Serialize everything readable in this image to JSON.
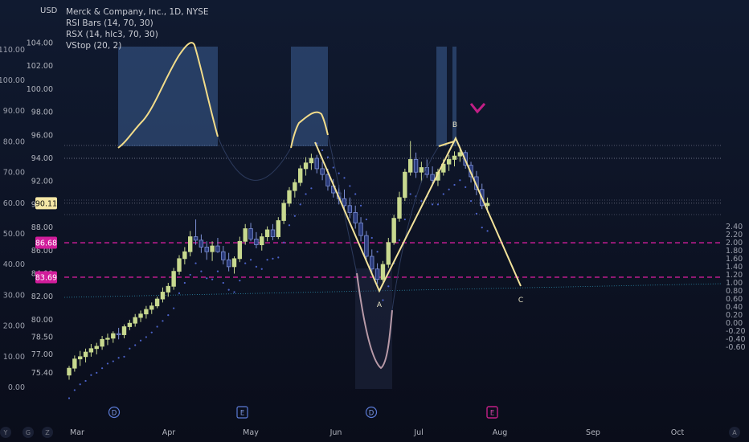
{
  "chart_data": {
    "type": "candlestick",
    "symbol_title": "Merck & Company, Inc., 1D, NYSE",
    "indicators": [
      "RSI Bars (14, 70, 30)",
      "RSX (14, hlc3, 70, 30)",
      "VStop (20, 2)"
    ],
    "currency": "USD",
    "price_axis_labels": [
      "104.00",
      "102.00",
      "100.00",
      "98.00",
      "96.00",
      "94.00",
      "92.00",
      "90.00",
      "88.00",
      "86.00",
      "84.00",
      "82.00",
      "80.00",
      "78.50",
      "77.00",
      "75.40"
    ],
    "osc_axis_left_labels": [
      "110.00",
      "100.00",
      "90.00",
      "80.00",
      "70.00",
      "60.00",
      "50.00",
      "40.00",
      "30.00",
      "20.00",
      "10.00",
      "0.00"
    ],
    "osc_axis_right_labels": [
      "2.40",
      "2.20",
      "2.00",
      "1.80",
      "1.60",
      "1.40",
      "1.20",
      "1.00",
      "0.80",
      "0.60",
      "0.40",
      "0.20",
      "0.00",
      "-0.20",
      "-0.40",
      "-0.60"
    ],
    "x_labels": [
      "Mar",
      "Apr",
      "May",
      "Jun",
      "Jul",
      "Aug",
      "Sep",
      "Oct"
    ],
    "price_tags": [
      {
        "label": "90.11",
        "price": 90.11,
        "color": "#f5e7a6",
        "text_color": "#111111"
      },
      {
        "label": "86.68",
        "price": 86.68,
        "color": "#d11d9b",
        "text_color": "#ffffff"
      },
      {
        "label": "83.69",
        "price": 83.69,
        "color": "#d11d9b",
        "text_color": "#ffffff"
      }
    ],
    "pattern_points": [
      {
        "label": "A",
        "date": "Jun 05",
        "price": 83.2
      },
      {
        "label": "B",
        "date": "Jul 12",
        "price": 94.6
      },
      {
        "label": "C",
        "date": "Aug 05",
        "price": 83.7
      }
    ],
    "candles": [
      [
        75.2,
        76.0,
        74.8,
        75.8
      ],
      [
        75.8,
        76.9,
        75.5,
        76.6
      ],
      [
        76.6,
        77.3,
        76.0,
        76.8
      ],
      [
        76.8,
        77.5,
        76.3,
        77.2
      ],
      [
        77.2,
        77.9,
        76.8,
        77.5
      ],
      [
        77.5,
        78.0,
        77.0,
        77.7
      ],
      [
        77.7,
        78.6,
        77.4,
        78.3
      ],
      [
        78.3,
        78.8,
        77.8,
        78.4
      ],
      [
        78.4,
        79.0,
        78.0,
        78.8
      ],
      [
        78.8,
        79.3,
        78.3,
        78.7
      ],
      [
        78.7,
        79.6,
        78.4,
        79.4
      ],
      [
        79.4,
        80.0,
        79.1,
        79.7
      ],
      [
        79.7,
        80.5,
        79.4,
        80.2
      ],
      [
        80.2,
        80.8,
        79.8,
        80.5
      ],
      [
        80.5,
        81.2,
        80.1,
        80.9
      ],
      [
        80.9,
        81.5,
        80.5,
        81.2
      ],
      [
        81.2,
        82.0,
        81.0,
        81.8
      ],
      [
        81.8,
        82.8,
        81.5,
        82.4
      ],
      [
        82.4,
        83.2,
        82.0,
        82.9
      ],
      [
        82.9,
        84.5,
        82.6,
        84.2
      ],
      [
        84.2,
        85.6,
        83.9,
        85.3
      ],
      [
        85.3,
        86.3,
        84.8,
        85.9
      ],
      [
        85.9,
        87.7,
        85.5,
        87.2
      ],
      [
        87.2,
        88.7,
        86.5,
        86.9
      ],
      [
        86.9,
        87.4,
        85.8,
        86.3
      ],
      [
        86.3,
        86.8,
        85.2,
        85.9
      ],
      [
        85.9,
        86.8,
        85.1,
        86.4
      ],
      [
        86.4,
        87.1,
        85.8,
        85.9
      ],
      [
        85.9,
        86.4,
        84.8,
        85.2
      ],
      [
        85.2,
        85.8,
        84.2,
        84.6
      ],
      [
        84.6,
        85.5,
        84.0,
        85.3
      ],
      [
        85.3,
        87.2,
        85.0,
        86.8
      ],
      [
        86.8,
        88.3,
        86.5,
        87.9
      ],
      [
        87.9,
        88.4,
        86.8,
        87.0
      ],
      [
        87.0,
        87.6,
        86.2,
        86.5
      ],
      [
        86.5,
        87.5,
        86.0,
        87.2
      ],
      [
        87.2,
        88.1,
        86.8,
        87.8
      ],
      [
        87.8,
        88.3,
        86.9,
        87.2
      ],
      [
        87.2,
        88.9,
        87.0,
        88.6
      ],
      [
        88.6,
        90.4,
        88.3,
        90.1
      ],
      [
        90.1,
        91.5,
        89.8,
        91.2
      ],
      [
        91.2,
        92.2,
        90.6,
        91.9
      ],
      [
        91.9,
        93.4,
        91.6,
        93.1
      ],
      [
        93.1,
        94.1,
        92.5,
        93.6
      ],
      [
        93.6,
        94.4,
        93.0,
        94.0
      ],
      [
        94.0,
        94.3,
        92.7,
        93.1
      ],
      [
        93.1,
        93.7,
        92.1,
        92.6
      ],
      [
        92.6,
        93.1,
        91.2,
        91.6
      ],
      [
        91.6,
        92.2,
        90.6,
        91.0
      ],
      [
        91.0,
        91.7,
        90.0,
        90.5
      ],
      [
        90.5,
        91.3,
        89.5,
        89.9
      ],
      [
        89.9,
        90.6,
        88.8,
        89.3
      ],
      [
        89.3,
        89.9,
        87.9,
        88.4
      ],
      [
        88.4,
        88.9,
        86.8,
        87.3
      ],
      [
        87.3,
        87.7,
        85.0,
        85.5
      ],
      [
        85.5,
        86.1,
        84.0,
        84.4
      ],
      [
        84.4,
        84.9,
        83.1,
        83.5
      ],
      [
        83.5,
        85.1,
        83.3,
        84.8
      ],
      [
        84.8,
        87.1,
        84.5,
        86.7
      ],
      [
        86.7,
        89.1,
        86.5,
        88.8
      ],
      [
        88.8,
        91.1,
        88.5,
        90.6
      ],
      [
        90.6,
        93.1,
        90.3,
        92.8
      ],
      [
        92.8,
        95.5,
        92.5,
        93.9
      ],
      [
        93.9,
        94.5,
        92.3,
        92.8
      ],
      [
        92.8,
        93.7,
        91.9,
        93.2
      ],
      [
        93.2,
        93.9,
        92.3,
        92.6
      ],
      [
        92.6,
        93.3,
        91.6,
        92.1
      ],
      [
        92.1,
        93.1,
        91.6,
        92.8
      ],
      [
        92.8,
        93.9,
        92.5,
        93.5
      ],
      [
        93.5,
        94.3,
        92.9,
        93.9
      ],
      [
        93.9,
        94.6,
        93.3,
        94.2
      ],
      [
        94.2,
        94.9,
        93.7,
        94.5
      ],
      [
        94.5,
        94.7,
        93.1,
        93.4
      ],
      [
        93.4,
        93.7,
        91.9,
        92.4
      ],
      [
        92.4,
        92.9,
        90.8,
        91.3
      ],
      [
        91.3,
        91.8,
        89.6,
        89.9
      ],
      [
        89.9,
        90.6,
        89.3,
        90.1
      ]
    ]
  }
}
